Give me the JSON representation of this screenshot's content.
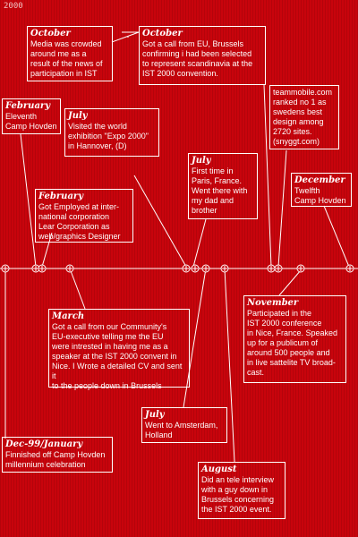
{
  "year_label": "2000",
  "events": [
    {
      "id": "oct-media",
      "title": "October",
      "body": "Media was crowded\naround me as a\nresult of the news of\nparticipation in IST"
    },
    {
      "id": "oct-eu",
      "title": "October",
      "body": "Got a call from EU, Brussels\nconfirming i had been selected\nto represent scandinavia at the\nIST 2000 convention."
    },
    {
      "id": "feb-camp",
      "title": "February",
      "body": "Eleventh\nCamp Hovden"
    },
    {
      "id": "july-expo",
      "title": "July",
      "body": "Visited the world\nexhibition \"Expo 2000\"\nin Hannover, (D)"
    },
    {
      "id": "teammobile",
      "title": "",
      "body": "teammobile.com\nranked no 1 as\nswedens best\ndesign among\n2720 sites.\n(snyggt.com)"
    },
    {
      "id": "july-paris",
      "title": "July",
      "body": "First time in\nParis, France.\nWent there with\nmy dad and\nbrother"
    },
    {
      "id": "dec-camp",
      "title": "December",
      "body": "Twelfth\nCamp Hovden"
    },
    {
      "id": "feb-lear",
      "title": "February",
      "body": "Got Employed at inter-\nnational corporation\nLear Corporation as\nweb/graphics Designer"
    },
    {
      "id": "nov-conf",
      "title": "November",
      "body": "Participated in the\nIST 2000 conference\nin Nice, France. Speaked\nup for a publicum of\naround 500 people and\nin live sattelite TV broad-\ncast."
    },
    {
      "id": "march-eu",
      "title": "March",
      "body": "Got a call from our Community's\nEU-executive telling me the EU\nwere intrested in having me as a\nspeaker at the IST 2000 convent in\nNice. I Wrote a detailed CV and sent it\nto the people down in Brussels"
    },
    {
      "id": "july-amsterdam",
      "title": "July",
      "body": "Went to Amsterdam,\nHolland"
    },
    {
      "id": "dec-jan",
      "title": "Dec-99/January",
      "body": "Finnished off Camp Hovden\nmillennium celebration"
    },
    {
      "id": "aug-tv",
      "title": "August",
      "body": "Did an tele interview\nwith a guy down in\nBrussels concerning\nthe IST 2000 event."
    }
  ],
  "markers": {
    "symbol": "+"
  },
  "colors": {
    "background": "#c8040c",
    "foreground": "#ffffff"
  }
}
